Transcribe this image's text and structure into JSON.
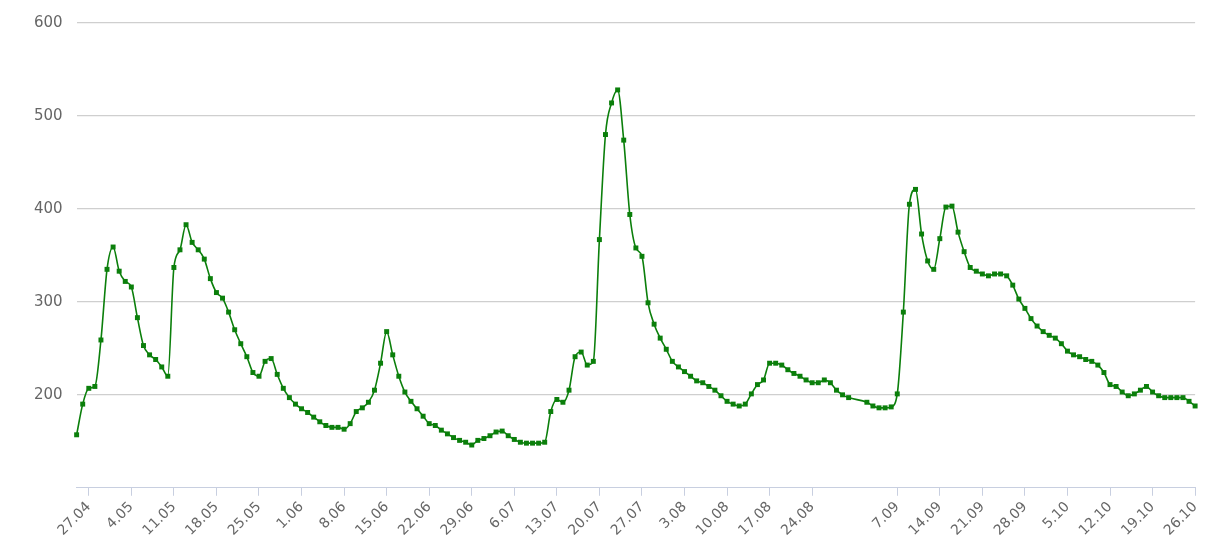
{
  "chart_data": {
    "type": "line",
    "x": [
      "--04-25",
      "--04-26",
      "--04-27",
      "--04-28",
      "--04-29",
      "--04-30",
      "--05-01",
      "--05-02",
      "--05-03",
      "--05-04",
      "--05-05",
      "--05-06",
      "--05-07",
      "--05-08",
      "--05-09",
      "--05-10",
      "--05-11",
      "--05-12",
      "--05-13",
      "--05-14",
      "--05-15",
      "--05-16",
      "--05-17",
      "--05-18",
      "--05-19",
      "--05-20",
      "--05-21",
      "--05-22",
      "--05-23",
      "--05-24",
      "--05-25",
      "--05-26",
      "--05-27",
      "--05-28",
      "--05-29",
      "--05-30",
      "--05-31",
      "--06-01",
      "--06-02",
      "--06-03",
      "--06-04",
      "--06-05",
      "--06-06",
      "--06-07",
      "--06-08",
      "--06-09",
      "--06-10",
      "--06-11",
      "--06-12",
      "--06-13",
      "--06-14",
      "--06-15",
      "--06-16",
      "--06-17",
      "--06-18",
      "--06-19",
      "--06-20",
      "--06-21",
      "--06-22",
      "--06-23",
      "--06-24",
      "--06-25",
      "--06-26",
      "--06-27",
      "--06-28",
      "--06-29",
      "--06-30",
      "--07-01",
      "--07-02",
      "--07-03",
      "--07-04",
      "--07-05",
      "--07-06",
      "--07-07",
      "--07-08",
      "--07-09",
      "--07-10",
      "--07-11",
      "--07-12",
      "--07-13",
      "--07-14",
      "--07-15",
      "--07-16",
      "--07-17",
      "--07-18",
      "--07-19",
      "--07-20",
      "--07-21",
      "--07-22",
      "--07-23",
      "--07-24",
      "--07-25",
      "--07-26",
      "--07-27",
      "--07-28",
      "--07-29",
      "--07-30",
      "--07-31",
      "--08-01",
      "--08-02",
      "--08-03",
      "--08-04",
      "--08-05",
      "--08-06",
      "--08-07",
      "--08-08",
      "--08-09",
      "--08-10",
      "--08-11",
      "--08-12",
      "--08-13",
      "--08-14",
      "--08-15",
      "--08-16",
      "--08-17",
      "--08-18",
      "--08-19",
      "--08-20",
      "--08-21",
      "--08-22",
      "--08-23",
      "--08-24",
      "--08-25",
      "--08-26",
      "--08-27",
      "--08-28",
      "--08-29",
      "--08-30",
      "--09-02",
      "--09-03",
      "--09-04",
      "--09-05",
      "--09-06",
      "--09-07",
      "--09-08",
      "--09-09",
      "--09-10",
      "--09-11",
      "--09-12",
      "--09-13",
      "--09-14",
      "--09-15",
      "--09-16",
      "--09-17",
      "--09-18",
      "--09-19",
      "--09-20",
      "--09-21",
      "--09-22",
      "--09-23",
      "--09-24",
      "--09-25",
      "--09-26",
      "--09-27",
      "--09-28",
      "--09-29",
      "--09-30",
      "--10-01",
      "--10-02",
      "--10-03",
      "--10-04",
      "--10-05",
      "--10-06",
      "--10-07",
      "--10-08",
      "--10-09",
      "--10-10",
      "--10-11",
      "--10-12",
      "--10-13",
      "--10-14",
      "--10-15",
      "--10-16",
      "--10-17",
      "--10-18",
      "--10-19",
      "--10-20",
      "--10-21",
      "--10-22",
      "--10-23",
      "--10-24",
      "--10-25",
      "--10-26"
    ],
    "series": [
      {
        "color": "#0b7f0b",
        "values": [
          157,
          190,
          207,
          209,
          259,
          335,
          359,
          333,
          322,
          316,
          283,
          253,
          243,
          238,
          230,
          220,
          337,
          356,
          383,
          364,
          356,
          346,
          325,
          310,
          304,
          289,
          270,
          255,
          241,
          224,
          220,
          236,
          239,
          222,
          207,
          197,
          190,
          185,
          181,
          176,
          171,
          167,
          165,
          165,
          163,
          169,
          182,
          186,
          192,
          205,
          234,
          268,
          243,
          220,
          203,
          193,
          185,
          177,
          169,
          167,
          162,
          158,
          154,
          151,
          149,
          146,
          151,
          153,
          156,
          160,
          161,
          156,
          152,
          149,
          148,
          148,
          148,
          149,
          182,
          195,
          192,
          205,
          241,
          246,
          232,
          236,
          367,
          480,
          514,
          528,
          474,
          394,
          358,
          349,
          299,
          276,
          261,
          249,
          236,
          230,
          225,
          220,
          215,
          213,
          209,
          205,
          199,
          193,
          190,
          188,
          190,
          201,
          211,
          216,
          234,
          234,
          232,
          227,
          223,
          220,
          216,
          213,
          213,
          216,
          213,
          205,
          200,
          197,
          192,
          188,
          186,
          186,
          187,
          201,
          289,
          405,
          421,
          373,
          344,
          335,
          368,
          402,
          403,
          375,
          354,
          337,
          333,
          330,
          328,
          330,
          330,
          328,
          318,
          303,
          293,
          282,
          274,
          268,
          264,
          261,
          255,
          247,
          243,
          241,
          238,
          236,
          232,
          224,
          211,
          209,
          203,
          199,
          201,
          205,
          209,
          203,
          199,
          197,
          197,
          197,
          197,
          193,
          188
        ]
      }
    ],
    "xlim": [
      "--04-25",
      "--10-26"
    ],
    "xticks": [
      {
        "value": "--04-27",
        "label": "27.04"
      },
      {
        "value": "--05-04",
        "label": "4.05"
      },
      {
        "value": "--05-11",
        "label": "11.05"
      },
      {
        "value": "--05-18",
        "label": "18.05"
      },
      {
        "value": "--05-25",
        "label": "25.05"
      },
      {
        "value": "--06-01",
        "label": "1.06"
      },
      {
        "value": "--06-08",
        "label": "8.06"
      },
      {
        "value": "--06-15",
        "label": "15.06"
      },
      {
        "value": "--06-22",
        "label": "22.06"
      },
      {
        "value": "--06-29",
        "label": "29.06"
      },
      {
        "value": "--07-06",
        "label": "6.07"
      },
      {
        "value": "--07-13",
        "label": "13.07"
      },
      {
        "value": "--07-20",
        "label": "20.07"
      },
      {
        "value": "--07-27",
        "label": "27.07"
      },
      {
        "value": "--08-03",
        "label": "3.08"
      },
      {
        "value": "--08-10",
        "label": "10.08"
      },
      {
        "value": "--08-17",
        "label": "17.08"
      },
      {
        "value": "--08-24",
        "label": "24.08"
      },
      {
        "value": "--09-07",
        "label": "7.09"
      },
      {
        "value": "--09-14",
        "label": "14.09"
      },
      {
        "value": "--09-21",
        "label": "21.09"
      },
      {
        "value": "--09-28",
        "label": "28.09"
      },
      {
        "value": "--10-05",
        "label": "5.10"
      },
      {
        "value": "--10-12",
        "label": "12.10"
      },
      {
        "value": "--10-19",
        "label": "19.10"
      },
      {
        "value": "--10-26",
        "label": "26.10"
      }
    ],
    "ylim": [
      100,
      600
    ],
    "yticks": [
      200,
      300,
      400,
      500,
      600
    ],
    "grid": "y",
    "legend": false,
    "marker": "square",
    "line_style": "solid"
  }
}
